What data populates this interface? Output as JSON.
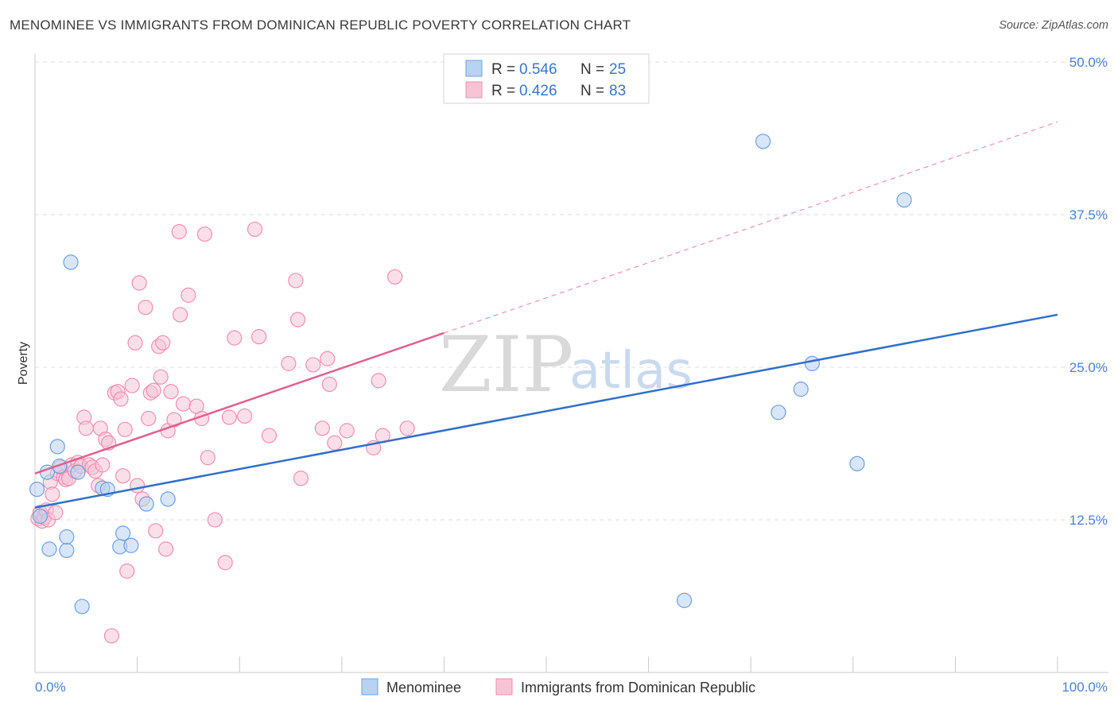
{
  "title": "MENOMINEE VS IMMIGRANTS FROM DOMINICAN REPUBLIC POVERTY CORRELATION CHART",
  "source": "Source: ZipAtlas.com",
  "colors": {
    "blue": "#6ea0e0",
    "blue_fill": "#b8d2f3",
    "blue_line": "#2f6fcc",
    "pink": "#ee8fb0",
    "pink_fill": "#f8c4d5",
    "pink_line": "#e0608e",
    "axis_text": "#4a7fd0",
    "grid": "#dedede"
  },
  "legend": {
    "row1": {
      "r_label": "R =",
      "r_value": "0.546",
      "n_label": "N =",
      "n_value": "25"
    },
    "row2": {
      "r_label": "R =",
      "r_value": "0.426",
      "n_label": "N =",
      "n_value": "83"
    }
  },
  "watermark": {
    "zip": "ZIP",
    "atlas": "atlas"
  },
  "chart_data": {
    "type": "scatter",
    "title": "MENOMINEE VS IMMIGRANTS FROM DOMINICAN REPUBLIC POVERTY CORRELATION CHART",
    "xlabel": "",
    "ylabel": "Poverty",
    "xlim": [
      0,
      100
    ],
    "ylim": [
      0,
      50
    ],
    "x_tick_labels": [
      "0.0%",
      "100.0%"
    ],
    "y_ticks": [
      12.5,
      25.0,
      37.5,
      50.0
    ],
    "y_tick_labels": [
      "12.5%",
      "25.0%",
      "37.5%",
      "50.0%"
    ],
    "grid": true,
    "legend_position": "top-center",
    "series": [
      {
        "name": "Menominee",
        "color": "#6ea0e0",
        "r": 0.546,
        "n": 25,
        "trend": {
          "x": [
            0,
            100
          ],
          "y": [
            13.5,
            29.3
          ],
          "style": "solid"
        },
        "points": [
          [
            0.2,
            15.0
          ],
          [
            1.2,
            16.4
          ],
          [
            2.2,
            18.5
          ],
          [
            2.4,
            16.9
          ],
          [
            3.5,
            33.6
          ],
          [
            4.2,
            16.4
          ],
          [
            6.6,
            15.1
          ],
          [
            7.1,
            15.0
          ],
          [
            8.6,
            11.4
          ],
          [
            8.3,
            10.3
          ],
          [
            9.4,
            10.4
          ],
          [
            10.9,
            13.8
          ],
          [
            13.0,
            14.2
          ],
          [
            1.4,
            10.1
          ],
          [
            3.1,
            10.0
          ],
          [
            3.1,
            11.1
          ],
          [
            4.6,
            5.4
          ],
          [
            63.5,
            5.9
          ],
          [
            71.2,
            43.5
          ],
          [
            72.7,
            21.3
          ],
          [
            74.9,
            23.2
          ],
          [
            76.0,
            25.3
          ],
          [
            80.4,
            17.1
          ],
          [
            85.0,
            38.7
          ],
          [
            0.5,
            12.8
          ]
        ]
      },
      {
        "name": "Immigrants from Dominican Republic",
        "color": "#ee8fb0",
        "r": 0.426,
        "n": 83,
        "trend": {
          "x": [
            0,
            40
          ],
          "y": [
            16.3,
            27.8
          ],
          "style": "solid"
        },
        "trend_extension": {
          "x": [
            40,
            100
          ],
          "y": [
            27.8,
            45.1
          ],
          "style": "dashed"
        },
        "points": [
          [
            0.3,
            12.6
          ],
          [
            0.5,
            13.1
          ],
          [
            0.7,
            12.4
          ],
          [
            0.9,
            12.7
          ],
          [
            1.1,
            13.3
          ],
          [
            1.3,
            12.5
          ],
          [
            1.5,
            15.6
          ],
          [
            1.7,
            14.6
          ],
          [
            2.0,
            13.1
          ],
          [
            2.2,
            16.3
          ],
          [
            2.5,
            16.8
          ],
          [
            2.8,
            16.0
          ],
          [
            3.0,
            15.8
          ],
          [
            3.3,
            15.9
          ],
          [
            3.6,
            17.0
          ],
          [
            3.9,
            16.5
          ],
          [
            4.2,
            17.2
          ],
          [
            4.5,
            16.9
          ],
          [
            4.8,
            20.9
          ],
          [
            5.0,
            20.0
          ],
          [
            5.3,
            17.0
          ],
          [
            5.6,
            16.8
          ],
          [
            5.9,
            16.5
          ],
          [
            6.2,
            15.3
          ],
          [
            6.4,
            20.0
          ],
          [
            6.6,
            17.0
          ],
          [
            6.9,
            19.1
          ],
          [
            7.2,
            18.8
          ],
          [
            7.5,
            3.0
          ],
          [
            7.8,
            22.9
          ],
          [
            8.1,
            23.0
          ],
          [
            8.4,
            22.4
          ],
          [
            8.6,
            16.1
          ],
          [
            8.8,
            19.9
          ],
          [
            9.0,
            8.3
          ],
          [
            9.5,
            23.5
          ],
          [
            9.8,
            27.0
          ],
          [
            10.0,
            15.3
          ],
          [
            10.2,
            31.9
          ],
          [
            10.5,
            14.2
          ],
          [
            10.8,
            29.9
          ],
          [
            11.1,
            20.8
          ],
          [
            11.3,
            22.9
          ],
          [
            11.6,
            23.1
          ],
          [
            11.8,
            11.6
          ],
          [
            12.1,
            26.7
          ],
          [
            12.3,
            24.2
          ],
          [
            12.5,
            27.0
          ],
          [
            12.8,
            10.1
          ],
          [
            13.0,
            19.8
          ],
          [
            13.3,
            23.0
          ],
          [
            13.6,
            20.7
          ],
          [
            14.1,
            36.1
          ],
          [
            14.2,
            29.3
          ],
          [
            14.5,
            22.0
          ],
          [
            15.0,
            30.9
          ],
          [
            15.8,
            21.8
          ],
          [
            16.3,
            20.8
          ],
          [
            16.6,
            35.9
          ],
          [
            16.9,
            17.6
          ],
          [
            17.6,
            12.5
          ],
          [
            18.6,
            9.0
          ],
          [
            19.0,
            20.9
          ],
          [
            19.5,
            27.4
          ],
          [
            20.5,
            21.0
          ],
          [
            21.5,
            36.3
          ],
          [
            21.9,
            27.5
          ],
          [
            22.9,
            19.4
          ],
          [
            24.8,
            25.3
          ],
          [
            25.5,
            32.1
          ],
          [
            25.7,
            28.9
          ],
          [
            26.0,
            15.9
          ],
          [
            27.2,
            25.2
          ],
          [
            28.1,
            20.0
          ],
          [
            28.6,
            25.7
          ],
          [
            28.8,
            23.6
          ],
          [
            29.3,
            18.8
          ],
          [
            30.5,
            19.8
          ],
          [
            33.1,
            18.4
          ],
          [
            33.6,
            23.9
          ],
          [
            34.0,
            19.4
          ],
          [
            35.2,
            32.4
          ],
          [
            36.4,
            20.0
          ]
        ]
      }
    ]
  }
}
